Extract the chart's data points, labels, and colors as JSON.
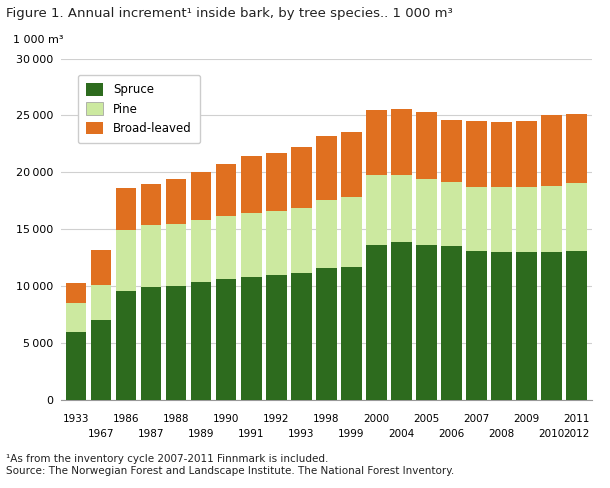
{
  "title": "Figure 1. Annual increment¹ inside bark, by tree species.. 1 000 m³",
  "ylabel": "1 000 m³",
  "footnote1": "¹As from the inventory cycle 2007-2011 Finnmark is included.",
  "footnote2": "Source: The Norwegian Forest and Landscape Institute. The National Forest Inventory.",
  "tick_labels_top": [
    "1933",
    "1986",
    "1988",
    "1990",
    "1992",
    "1998",
    "2000",
    "2005",
    "2007",
    "2009",
    "2011"
  ],
  "tick_labels_bot": [
    "1967",
    "1987",
    "1989",
    "1991",
    "1993",
    "1999",
    "2004",
    "2006",
    "2008",
    "2010",
    "2012"
  ],
  "spruce": [
    6000,
    7000,
    9600,
    9900,
    10050,
    10350,
    10600,
    10800,
    11000,
    11150,
    11600,
    11700,
    13600,
    13900,
    13600,
    13500,
    13100,
    13050,
    13000,
    13000,
    13100
  ],
  "pine": [
    2500,
    3100,
    5300,
    5450,
    5400,
    5450,
    5550,
    5600,
    5650,
    5750,
    6000,
    6150,
    6200,
    5900,
    5800,
    5700,
    5600,
    5650,
    5700,
    5800,
    5950
  ],
  "broad": [
    1800,
    3100,
    3700,
    3600,
    3950,
    4200,
    4550,
    5000,
    5100,
    5350,
    5600,
    5700,
    5700,
    5800,
    5900,
    5400,
    5800,
    5750,
    5800,
    6200,
    6050
  ],
  "spruce_color": "#2d6b1e",
  "pine_color": "#cce9a0",
  "broad_color": "#e07020",
  "ylim": [
    0,
    30000
  ],
  "yticks": [
    0,
    5000,
    10000,
    15000,
    20000,
    25000,
    30000
  ],
  "bg_color": "#ffffff",
  "grid_color": "#d0d0d0"
}
